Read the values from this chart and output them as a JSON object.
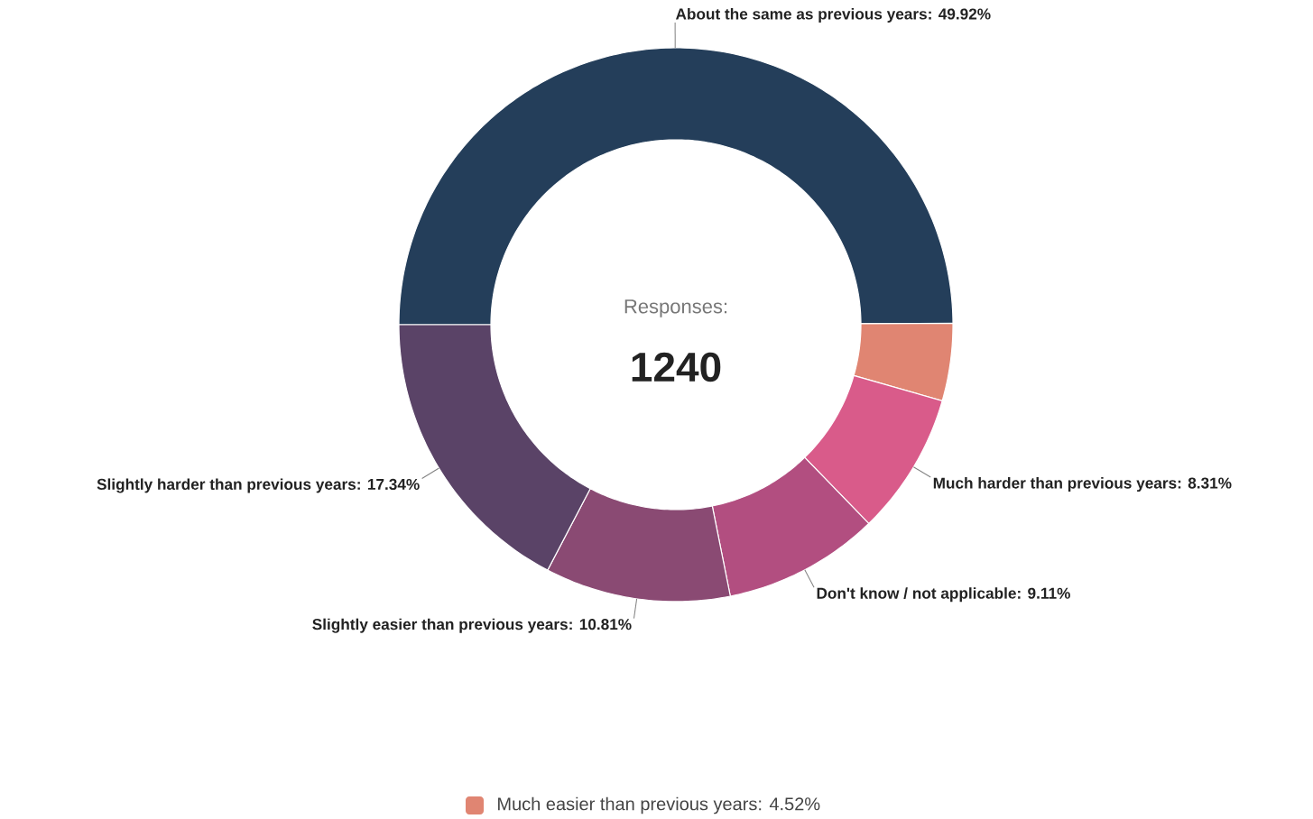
{
  "chart_data": {
    "type": "donut",
    "categories": [
      "About the same as previous years",
      "Much easier than previous years",
      "Much harder than previous years",
      "Don't know / not applicable",
      "Slightly easier than previous years",
      "Slightly harder than previous years"
    ],
    "values": [
      49.92,
      4.52,
      8.31,
      9.11,
      10.81,
      17.34
    ],
    "value_labels": [
      ": 49.92%",
      ": 4.52%",
      ": 8.31%",
      ": 9.11%",
      ": 10.81%",
      ": 17.34%"
    ],
    "colors": [
      "#243e5a",
      "#e08572",
      "#d95b8a",
      "#b24e80",
      "#8a4a73",
      "#5a4367"
    ],
    "annotations": [
      "Responses:",
      "1240"
    ],
    "legend": "bottom"
  }
}
